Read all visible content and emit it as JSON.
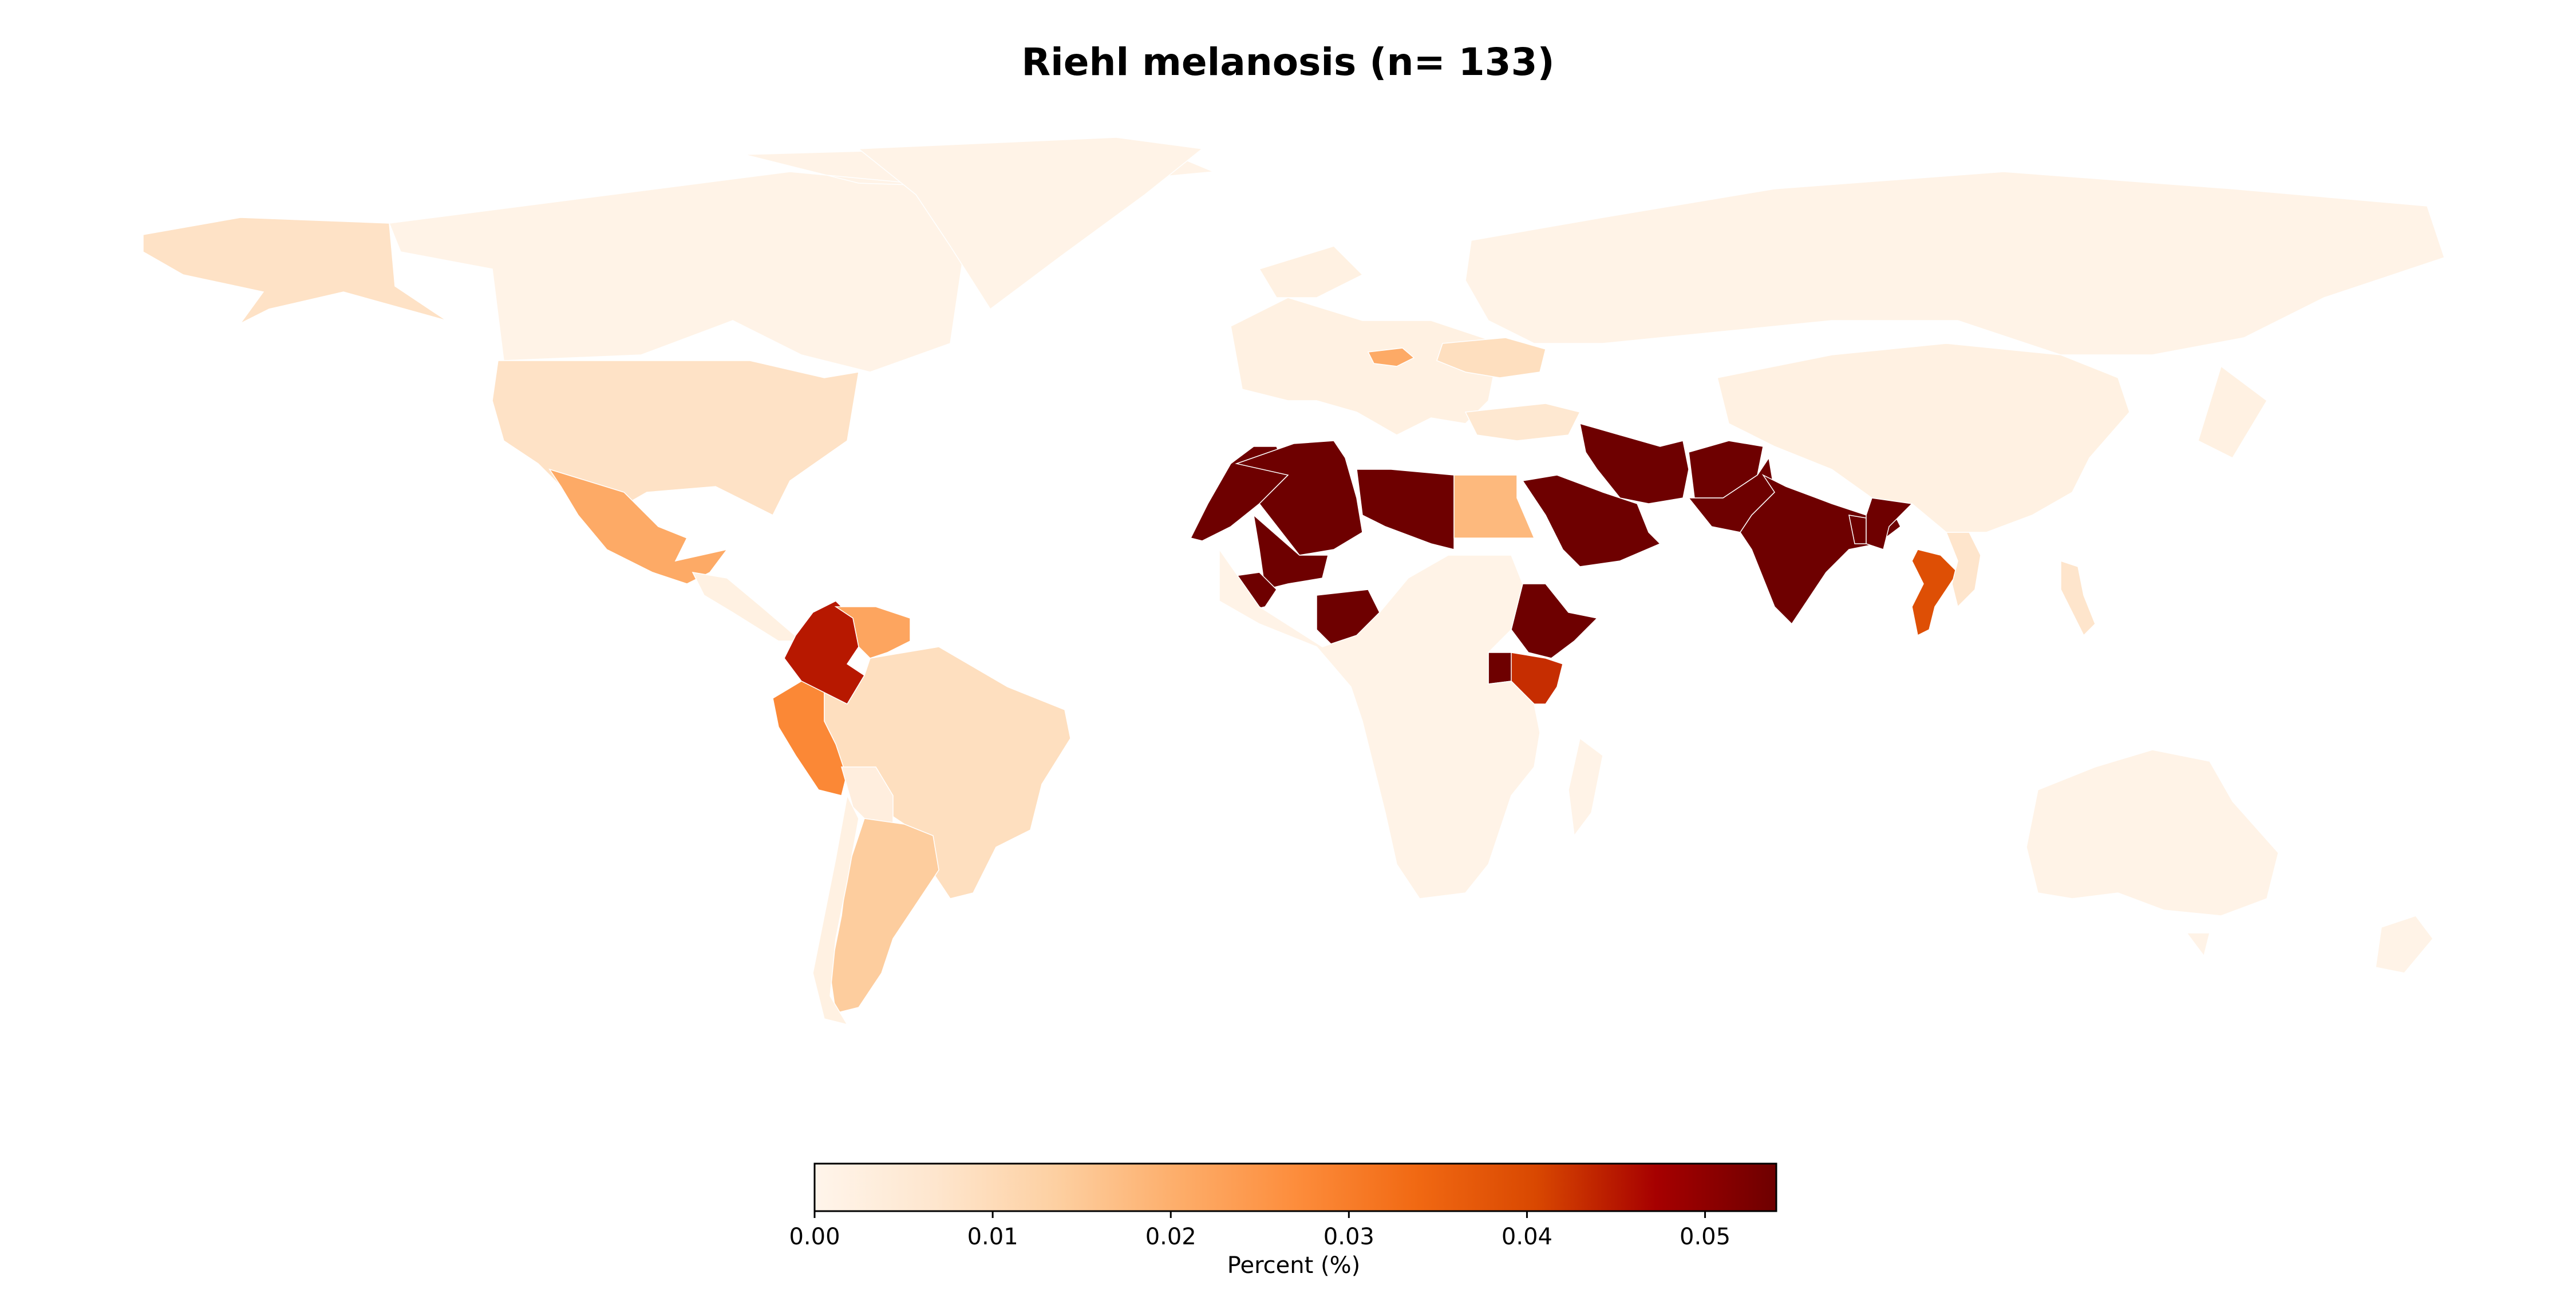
{
  "title": "Riehl melanosis (n= 133)",
  "colorbar": {
    "label": "Percent (%)",
    "ticks": [
      "0.00",
      "0.01",
      "0.02",
      "0.03",
      "0.04",
      "0.05"
    ],
    "min": 0.0,
    "max": 0.054,
    "colormap": [
      "#fff5eb",
      "#fee6ce",
      "#fdd0a2",
      "#fdae6b",
      "#fd8d3c",
      "#f16913",
      "#d94801",
      "#a60000",
      "#6e0000"
    ]
  },
  "chart_data": {
    "type": "choropleth",
    "title": "Riehl melanosis (n= 133)",
    "value_label": "Percent (%)",
    "range": [
      0.0,
      0.054
    ],
    "regions": [
      {
        "name": "Canada",
        "value": 0.001
      },
      {
        "name": "Alaska (USA)",
        "value": 0.008
      },
      {
        "name": "United States",
        "value": 0.008
      },
      {
        "name": "Greenland",
        "value": 0.001
      },
      {
        "name": "Mexico",
        "value": 0.021
      },
      {
        "name": "Central America",
        "value": 0.002
      },
      {
        "name": "Colombia",
        "value": 0.045
      },
      {
        "name": "Venezuela",
        "value": 0.022
      },
      {
        "name": "Peru",
        "value": 0.028
      },
      {
        "name": "Brazil",
        "value": 0.009
      },
      {
        "name": "Bolivia",
        "value": 0.003
      },
      {
        "name": "Argentina",
        "value": 0.014
      },
      {
        "name": "Chile",
        "value": 0.002
      },
      {
        "name": "Europe",
        "value": 0.002
      },
      {
        "name": "Hungary",
        "value": 0.021
      },
      {
        "name": "Ukraine",
        "value": 0.009
      },
      {
        "name": "Turkey",
        "value": 0.006
      },
      {
        "name": "Russia",
        "value": 0.001
      },
      {
        "name": "Morocco",
        "value": 0.054
      },
      {
        "name": "Algeria",
        "value": 0.054
      },
      {
        "name": "Libya",
        "value": 0.054
      },
      {
        "name": "Egypt",
        "value": 0.018
      },
      {
        "name": "Mali",
        "value": 0.054
      },
      {
        "name": "Guinea",
        "value": 0.054
      },
      {
        "name": "Nigeria",
        "value": 0.054
      },
      {
        "name": "Ethiopia",
        "value": 0.054
      },
      {
        "name": "Uganda",
        "value": 0.054
      },
      {
        "name": "Kenya",
        "value": 0.043
      },
      {
        "name": "Saudi Arabia",
        "value": 0.054
      },
      {
        "name": "Iran",
        "value": 0.054
      },
      {
        "name": "Afghanistan",
        "value": 0.054
      },
      {
        "name": "Pakistan",
        "value": 0.054
      },
      {
        "name": "India",
        "value": 0.054
      },
      {
        "name": "Bangladesh",
        "value": 0.054
      },
      {
        "name": "Myanmar",
        "value": 0.054
      },
      {
        "name": "Thailand",
        "value": 0.039
      },
      {
        "name": "Vietnam",
        "value": 0.007
      },
      {
        "name": "Philippines",
        "value": 0.007
      },
      {
        "name": "China",
        "value": 0.002
      },
      {
        "name": "Africa (other)",
        "value": 0.001
      },
      {
        "name": "Australia",
        "value": 0.001
      }
    ]
  }
}
